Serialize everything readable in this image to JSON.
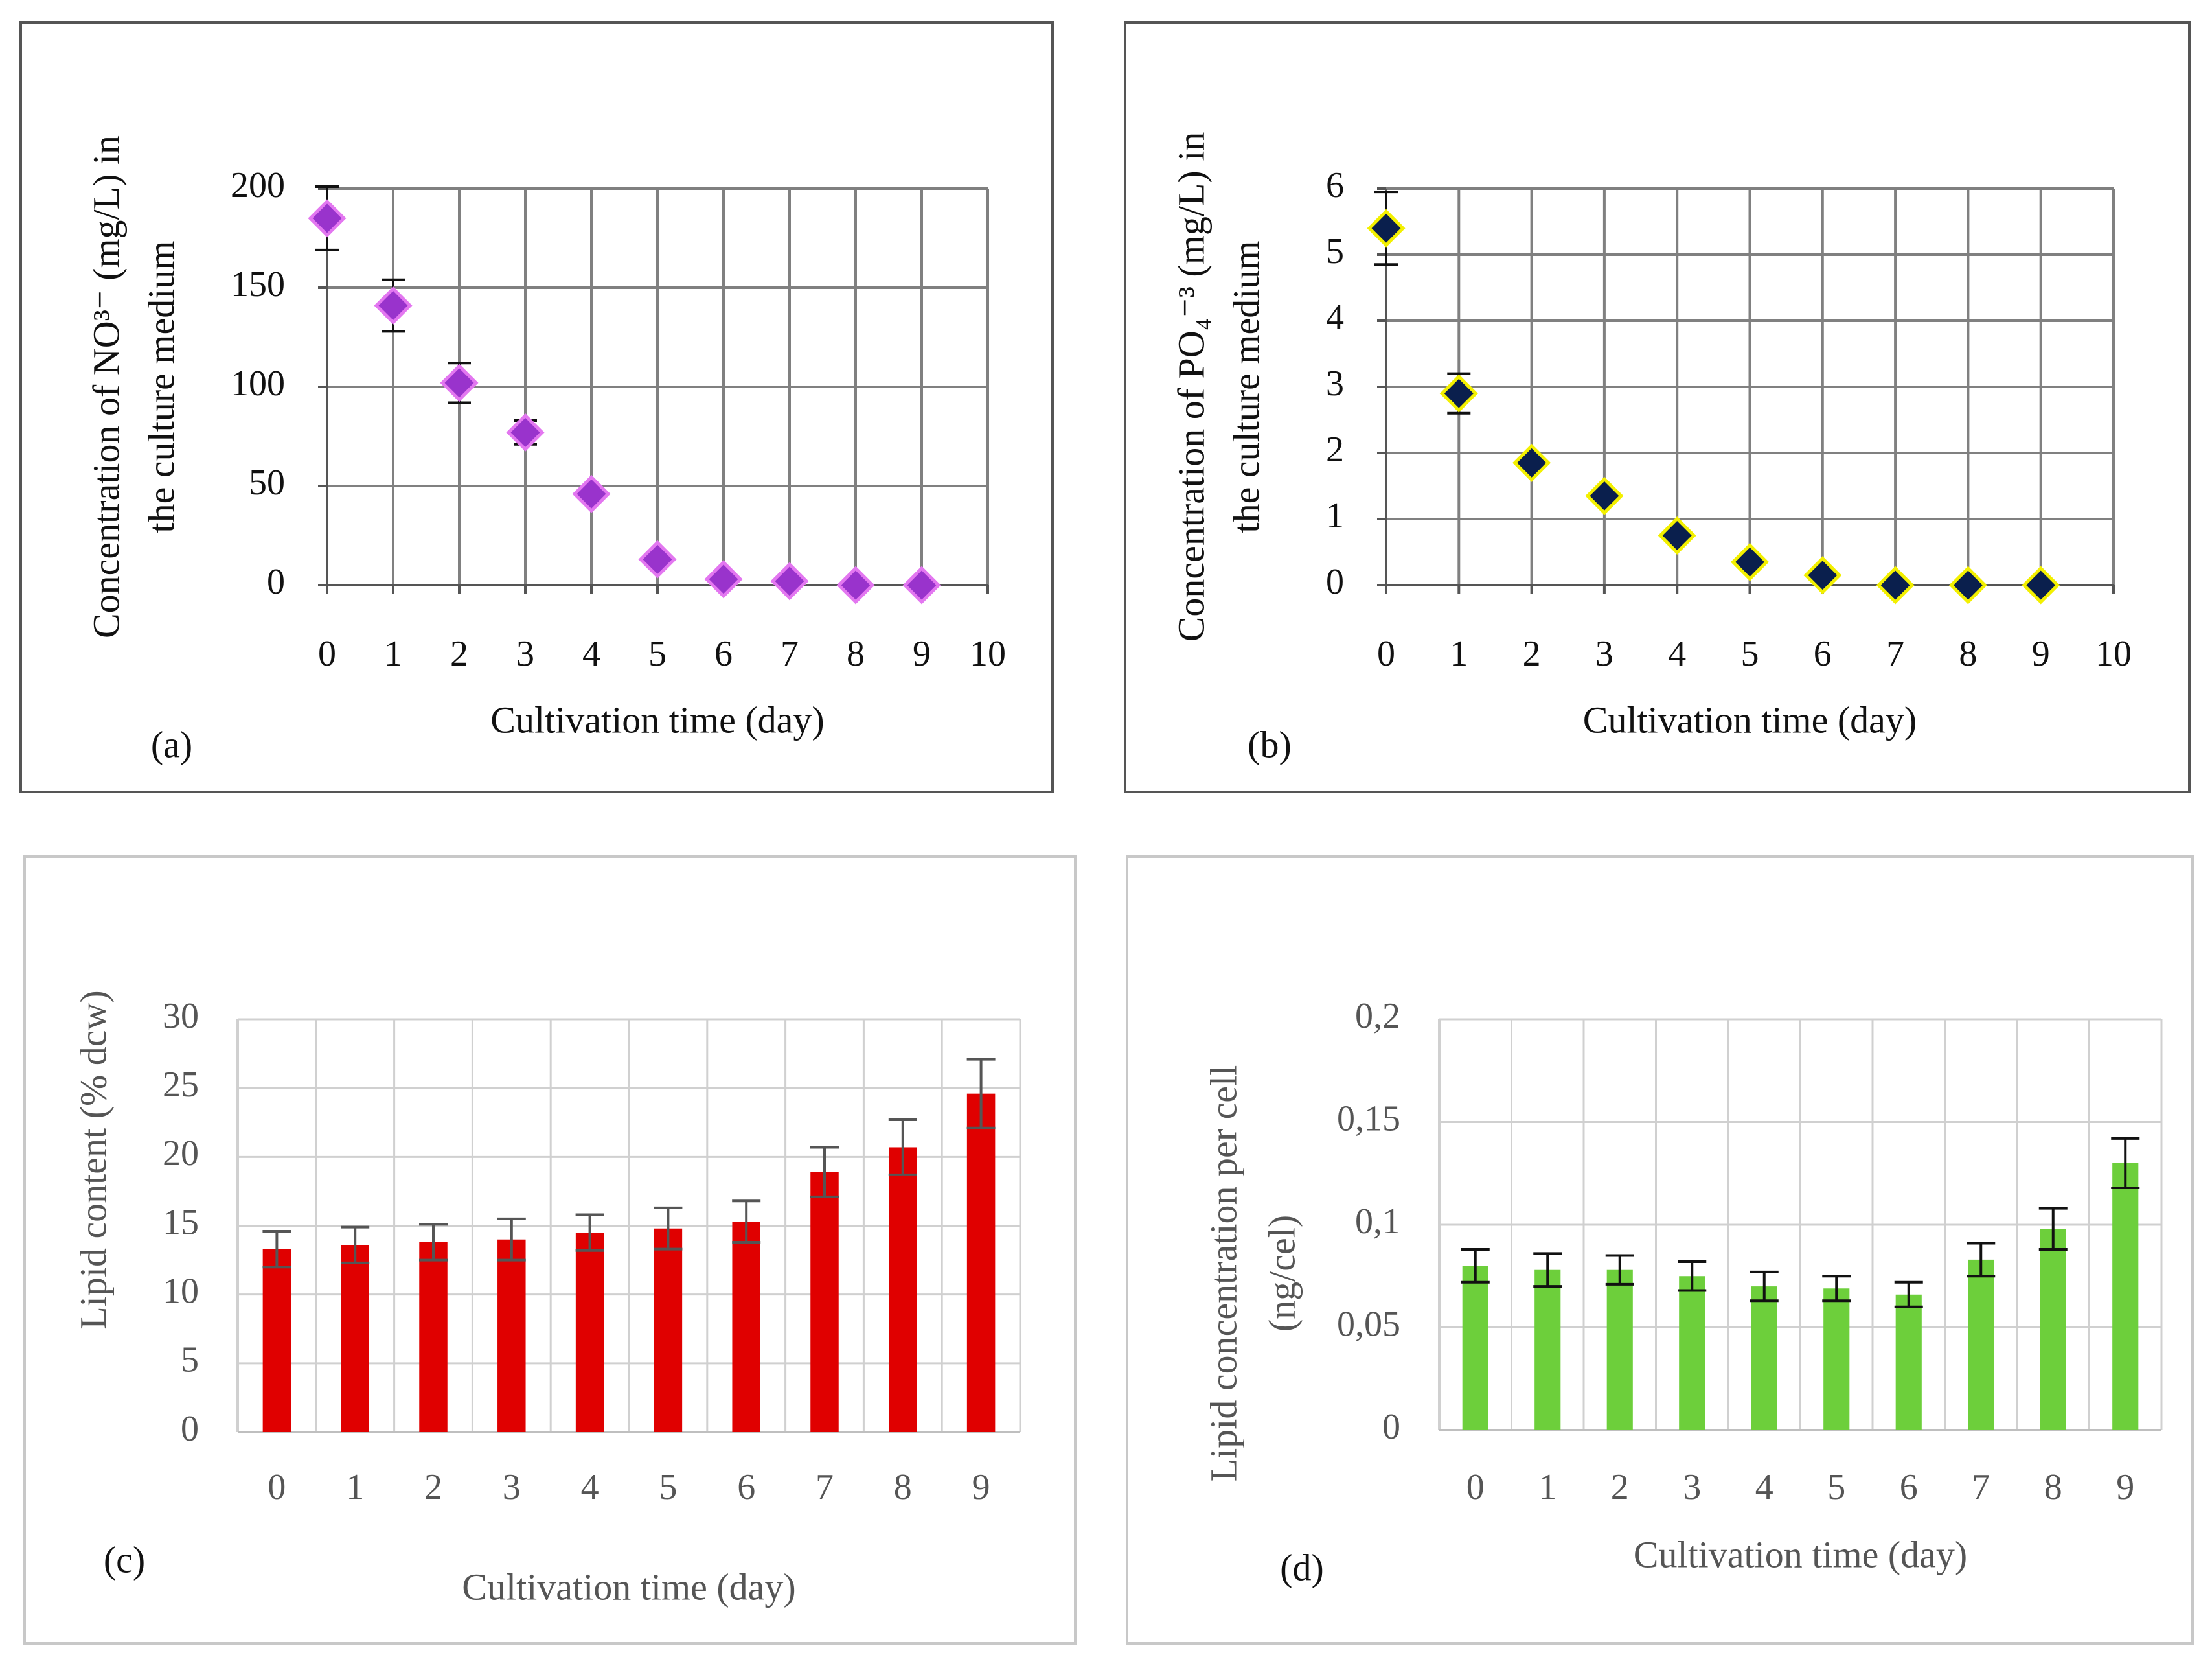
{
  "chart_data": [
    {
      "id": "a",
      "type": "scatter",
      "panel_label": "(a)",
      "xlabel": "Cultivation time (day)",
      "ylabel_lines": [
        "Concentration of  NO³⁻ (mg/L) in",
        "the culture medium"
      ],
      "x_ticks": [
        "0",
        "1",
        "2",
        "3",
        "4",
        "5",
        "6",
        "7",
        "8",
        "9",
        "10"
      ],
      "y_ticks": [
        "0",
        "50",
        "100",
        "150",
        "200"
      ],
      "xlim": [
        0,
        10
      ],
      "ylim": [
        0,
        200
      ],
      "x": [
        0,
        1,
        2,
        3,
        4,
        5,
        6,
        7,
        8,
        9
      ],
      "y": [
        185,
        141,
        102,
        77,
        46,
        13,
        3,
        2,
        0,
        0
      ],
      "err": [
        16,
        13,
        10,
        6,
        3,
        2,
        1,
        1,
        0,
        0
      ],
      "marker_color": "#9933cc",
      "marker_edge": "#e377f0",
      "grid": true
    },
    {
      "id": "b",
      "type": "scatter",
      "panel_label": "(b)",
      "xlabel": "Cultivation time (day)",
      "ylabel_lines": [
        "Concentration of  PO₄⁻³ (mg/L) in",
        "the culture medium"
      ],
      "x_ticks": [
        "0",
        "1",
        "2",
        "3",
        "4",
        "5",
        "6",
        "7",
        "8",
        "9",
        "10"
      ],
      "y_ticks": [
        "0",
        "1",
        "2",
        "3",
        "4",
        "5",
        "6"
      ],
      "xlim": [
        0,
        10
      ],
      "ylim": [
        0,
        6
      ],
      "x": [
        0,
        1,
        2,
        3,
        4,
        5,
        6,
        7,
        8,
        9
      ],
      "y": [
        5.4,
        2.9,
        1.85,
        1.35,
        0.75,
        0.35,
        0.15,
        0,
        0,
        0
      ],
      "err": [
        0.55,
        0.3,
        0.08,
        0.07,
        0.05,
        0.04,
        0.02,
        0,
        0,
        0
      ],
      "marker_color": "#0a1f4d",
      "marker_edge": "#f3f000",
      "grid": true
    },
    {
      "id": "c",
      "type": "bar",
      "panel_label": "(c)",
      "xlabel": "Cultivation time (day)",
      "ylabel_lines": [
        "Lipid  content (% dcw)"
      ],
      "categories": [
        "0",
        "1",
        "2",
        "3",
        "4",
        "5",
        "6",
        "7",
        "8",
        "9"
      ],
      "y_ticks": [
        "0",
        "5",
        "10",
        "15",
        "20",
        "25",
        "30"
      ],
      "ylim": [
        0,
        30
      ],
      "values": [
        13.3,
        13.6,
        13.8,
        14.0,
        14.5,
        14.8,
        15.3,
        18.9,
        20.7,
        24.6
      ],
      "err": [
        1.3,
        1.3,
        1.3,
        1.5,
        1.3,
        1.5,
        1.5,
        1.8,
        2.0,
        2.5
      ],
      "bar_color": "#e00000",
      "grid": true
    },
    {
      "id": "d",
      "type": "bar",
      "panel_label": "(d)",
      "xlabel": "Cultivation time (day)",
      "ylabel_lines": [
        "Lipid  concentration per cell",
        "(ng/cel)"
      ],
      "categories": [
        "0",
        "1",
        "2",
        "3",
        "4",
        "5",
        "6",
        "7",
        "8",
        "9"
      ],
      "y_ticks": [
        "0",
        "0,05",
        "0,1",
        "0,15",
        "0,2"
      ],
      "ylim": [
        0,
        0.2
      ],
      "values": [
        0.08,
        0.078,
        0.078,
        0.075,
        0.07,
        0.069,
        0.066,
        0.083,
        0.098,
        0.13
      ],
      "err": [
        0.008,
        0.008,
        0.007,
        0.007,
        0.007,
        0.006,
        0.006,
        0.008,
        0.01,
        0.012
      ],
      "bar_color": "#6dcf3b",
      "grid": true
    }
  ]
}
